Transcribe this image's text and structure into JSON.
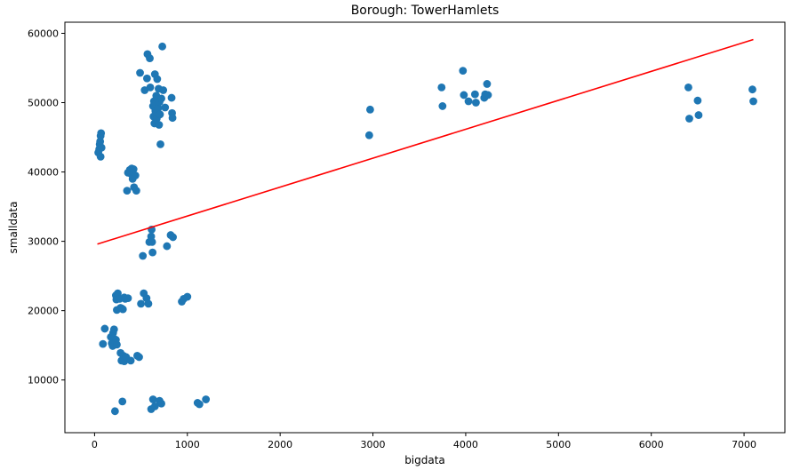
{
  "chart_data": {
    "type": "scatter",
    "title": "Borough: TowerHamlets",
    "xlabel": "bigdata",
    "ylabel": "smalldata",
    "xlim": [
      -320,
      7440
    ],
    "ylim": [
      2400,
      61600
    ],
    "xticks": [
      0,
      1000,
      2000,
      3000,
      4000,
      5000,
      6000,
      7000
    ],
    "yticks": [
      10000,
      20000,
      30000,
      40000,
      50000,
      60000
    ],
    "grid": false,
    "legend": "none",
    "colors": {
      "points": "#1f77b4",
      "fit_line": "#ff0000",
      "axes": "#000000"
    },
    "fit_line": {
      "x": [
        30,
        7100
      ],
      "y": [
        29600,
        59100
      ]
    },
    "points": [
      {
        "x": 40,
        "y": 42800
      },
      {
        "x": 50,
        "y": 43300
      },
      {
        "x": 55,
        "y": 44000
      },
      {
        "x": 60,
        "y": 44400
      },
      {
        "x": 65,
        "y": 45200
      },
      {
        "x": 70,
        "y": 45600
      },
      {
        "x": 65,
        "y": 42200
      },
      {
        "x": 75,
        "y": 43500
      },
      {
        "x": 90,
        "y": 15200
      },
      {
        "x": 110,
        "y": 17400
      },
      {
        "x": 175,
        "y": 16200
      },
      {
        "x": 185,
        "y": 15300
      },
      {
        "x": 195,
        "y": 14900
      },
      {
        "x": 200,
        "y": 16800
      },
      {
        "x": 205,
        "y": 16000
      },
      {
        "x": 210,
        "y": 17300
      },
      {
        "x": 220,
        "y": 15500
      },
      {
        "x": 230,
        "y": 15800
      },
      {
        "x": 240,
        "y": 15100
      },
      {
        "x": 230,
        "y": 22200
      },
      {
        "x": 235,
        "y": 21600
      },
      {
        "x": 240,
        "y": 20100
      },
      {
        "x": 250,
        "y": 22500
      },
      {
        "x": 270,
        "y": 21700
      },
      {
        "x": 280,
        "y": 20400
      },
      {
        "x": 295,
        "y": 20300
      },
      {
        "x": 305,
        "y": 20200
      },
      {
        "x": 320,
        "y": 21900
      },
      {
        "x": 330,
        "y": 21700
      },
      {
        "x": 360,
        "y": 21800
      },
      {
        "x": 280,
        "y": 13900
      },
      {
        "x": 290,
        "y": 12800
      },
      {
        "x": 310,
        "y": 13500
      },
      {
        "x": 320,
        "y": 12700
      },
      {
        "x": 340,
        "y": 13300
      },
      {
        "x": 390,
        "y": 12800
      },
      {
        "x": 460,
        "y": 13500
      },
      {
        "x": 480,
        "y": 13300
      },
      {
        "x": 220,
        "y": 5500
      },
      {
        "x": 300,
        "y": 6900
      },
      {
        "x": 350,
        "y": 37300
      },
      {
        "x": 360,
        "y": 39900
      },
      {
        "x": 380,
        "y": 40300
      },
      {
        "x": 395,
        "y": 39700
      },
      {
        "x": 400,
        "y": 40500
      },
      {
        "x": 410,
        "y": 39000
      },
      {
        "x": 420,
        "y": 40400
      },
      {
        "x": 425,
        "y": 37800
      },
      {
        "x": 440,
        "y": 39500
      },
      {
        "x": 450,
        "y": 37300
      },
      {
        "x": 490,
        "y": 54300
      },
      {
        "x": 500,
        "y": 21000
      },
      {
        "x": 520,
        "y": 27900
      },
      {
        "x": 530,
        "y": 22500
      },
      {
        "x": 540,
        "y": 51800
      },
      {
        "x": 560,
        "y": 21800
      },
      {
        "x": 565,
        "y": 53500
      },
      {
        "x": 570,
        "y": 57000
      },
      {
        "x": 580,
        "y": 21000
      },
      {
        "x": 590,
        "y": 29900
      },
      {
        "x": 595,
        "y": 56400
      },
      {
        "x": 600,
        "y": 52200
      },
      {
        "x": 605,
        "y": 30000
      },
      {
        "x": 610,
        "y": 30700
      },
      {
        "x": 615,
        "y": 31700
      },
      {
        "x": 620,
        "y": 29900
      },
      {
        "x": 625,
        "y": 28400
      },
      {
        "x": 630,
        "y": 49500
      },
      {
        "x": 635,
        "y": 48000
      },
      {
        "x": 640,
        "y": 50200
      },
      {
        "x": 645,
        "y": 47000
      },
      {
        "x": 650,
        "y": 54100
      },
      {
        "x": 655,
        "y": 48800
      },
      {
        "x": 660,
        "y": 49800
      },
      {
        "x": 665,
        "y": 51000
      },
      {
        "x": 670,
        "y": 47700
      },
      {
        "x": 675,
        "y": 53400
      },
      {
        "x": 680,
        "y": 50500
      },
      {
        "x": 685,
        "y": 49200
      },
      {
        "x": 690,
        "y": 52000
      },
      {
        "x": 695,
        "y": 46800
      },
      {
        "x": 700,
        "y": 50100
      },
      {
        "x": 705,
        "y": 48300
      },
      {
        "x": 710,
        "y": 44000
      },
      {
        "x": 720,
        "y": 50600
      },
      {
        "x": 730,
        "y": 58100
      },
      {
        "x": 740,
        "y": 51800
      },
      {
        "x": 760,
        "y": 49300
      },
      {
        "x": 780,
        "y": 29300
      },
      {
        "x": 820,
        "y": 30900
      },
      {
        "x": 830,
        "y": 50700
      },
      {
        "x": 835,
        "y": 48500
      },
      {
        "x": 840,
        "y": 47800
      },
      {
        "x": 845,
        "y": 30600
      },
      {
        "x": 610,
        "y": 5800
      },
      {
        "x": 630,
        "y": 7200
      },
      {
        "x": 650,
        "y": 6200
      },
      {
        "x": 700,
        "y": 7000
      },
      {
        "x": 720,
        "y": 6600
      },
      {
        "x": 940,
        "y": 21300
      },
      {
        "x": 960,
        "y": 21700
      },
      {
        "x": 1000,
        "y": 22000
      },
      {
        "x": 1110,
        "y": 6700
      },
      {
        "x": 1130,
        "y": 6500
      },
      {
        "x": 1200,
        "y": 7200
      },
      {
        "x": 2960,
        "y": 45300
      },
      {
        "x": 2970,
        "y": 49000
      },
      {
        "x": 3740,
        "y": 52200
      },
      {
        "x": 3750,
        "y": 49500
      },
      {
        "x": 3970,
        "y": 54600
      },
      {
        "x": 3980,
        "y": 51100
      },
      {
        "x": 4030,
        "y": 50200
      },
      {
        "x": 4100,
        "y": 51200
      },
      {
        "x": 4110,
        "y": 50000
      },
      {
        "x": 4200,
        "y": 50700
      },
      {
        "x": 4210,
        "y": 51200
      },
      {
        "x": 4230,
        "y": 52700
      },
      {
        "x": 4240,
        "y": 51100
      },
      {
        "x": 6400,
        "y": 52200
      },
      {
        "x": 6410,
        "y": 47700
      },
      {
        "x": 6500,
        "y": 50300
      },
      {
        "x": 6510,
        "y": 48200
      },
      {
        "x": 7090,
        "y": 51900
      },
      {
        "x": 7100,
        "y": 50200
      }
    ]
  }
}
